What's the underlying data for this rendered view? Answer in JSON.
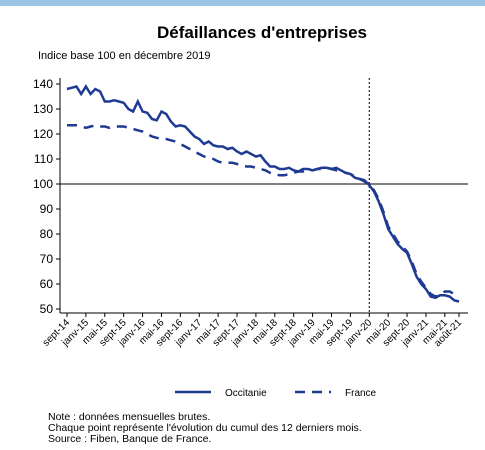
{
  "chart_data": {
    "type": "line",
    "title": "Défaillances d'entreprises",
    "subtitle": "Indice base 100 en décembre 2019",
    "categories": [
      "sept-14",
      null,
      null,
      null,
      "janv-15",
      null,
      null,
      null,
      "mai-15",
      null,
      null,
      null,
      "sept-15",
      null,
      null,
      null,
      "janv-16",
      null,
      null,
      null,
      "mai-16",
      null,
      null,
      null,
      "sept-16",
      null,
      null,
      null,
      "janv-17",
      null,
      null,
      null,
      "mai-17",
      null,
      null,
      null,
      "sept-17",
      null,
      null,
      null,
      "janv-18",
      null,
      null,
      null,
      "mai-18",
      null,
      null,
      null,
      "sept-18",
      null,
      null,
      null,
      "janv-19",
      null,
      null,
      null,
      "mai-19",
      null,
      null,
      null,
      "sept-19",
      null,
      null,
      null,
      "janv-20",
      null,
      null,
      null,
      "mai-20",
      null,
      null,
      null,
      "sept-20",
      null,
      null,
      null,
      "janv-21",
      null,
      null,
      null,
      "mai-21",
      null,
      null,
      "août-21"
    ],
    "series": [
      {
        "name": "Occitanie",
        "color": "#1f3a93",
        "dash": false,
        "values": [
          138,
          138.5,
          139,
          136,
          139,
          136,
          138,
          137,
          133,
          133,
          133.5,
          133,
          132.5,
          130,
          129,
          133,
          129,
          128.5,
          126,
          125.5,
          129,
          128,
          125,
          123,
          123.5,
          123,
          121,
          119,
          118,
          116,
          117,
          115.5,
          115,
          115,
          114,
          114.5,
          113,
          112,
          113,
          112,
          111,
          111.5,
          109,
          107,
          107,
          106,
          106,
          106.5,
          105.5,
          105,
          106,
          106,
          105.5,
          106,
          106.5,
          106.5,
          106,
          106.5,
          105.5,
          104.5,
          104,
          102.5,
          102,
          101.5,
          99.5,
          97,
          93,
          88,
          82,
          79,
          76,
          74,
          72.5,
          68,
          63,
          60,
          58,
          55,
          54.5,
          55.5,
          55.5,
          55,
          53.5,
          53
        ]
      },
      {
        "name": "France",
        "color": "#1f3a93",
        "dash": true,
        "values": [
          123.5,
          123.5,
          123.5,
          123,
          122.5,
          123,
          123.5,
          123,
          123,
          122.5,
          123,
          123,
          123,
          122.5,
          122,
          121.5,
          121,
          120,
          119,
          118.5,
          118,
          118,
          117.5,
          117,
          116,
          115,
          114,
          113,
          112,
          111,
          110.5,
          110,
          109,
          108.5,
          108.5,
          108.5,
          108,
          107.5,
          107,
          107,
          106.5,
          106,
          105.5,
          104.5,
          104,
          103.5,
          103.5,
          104,
          104.5,
          105,
          105,
          105.5,
          105.5,
          106,
          106,
          106.5,
          106,
          105.5,
          105,
          104.5,
          104,
          103,
          102,
          101,
          100,
          97.5,
          94,
          89,
          83,
          80,
          77,
          75,
          73,
          69,
          64,
          61,
          58.5,
          56,
          55,
          55.5,
          57,
          57,
          56,
          null
        ]
      }
    ],
    "ylim": [
      50,
      140
    ],
    "yticks": [
      50,
      60,
      70,
      80,
      90,
      100,
      110,
      120,
      130,
      140
    ],
    "reference_y": 100,
    "reference_x": "janv-20",
    "notes": [
      "Note : données mensuelles brutes.",
      "Chaque point représente l'évolution du cumul des 12 derniers mois.",
      "Source : Fiben, Banque de France."
    ]
  }
}
